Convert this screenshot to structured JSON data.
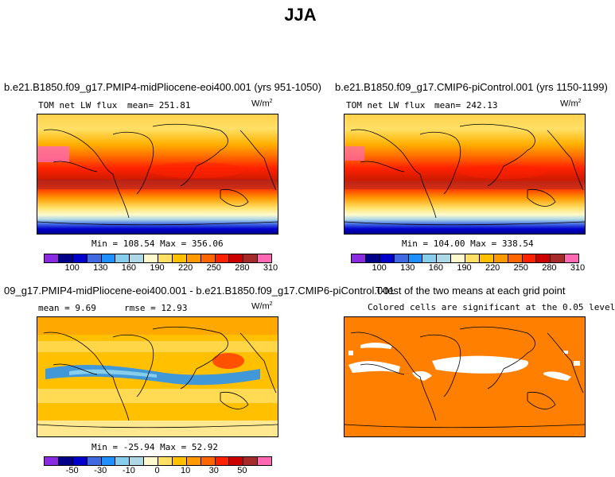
{
  "figure_title": "JJA",
  "units_base": "W/m",
  "units_exp": "2",
  "panels": {
    "p1": {
      "title": "b.e21.B1850.f09_g17.PMIP4-midPliocene-eoi400.001 (yrs 951-1050)",
      "variable": "TOM net LW flux",
      "mean": "mean= 251.81",
      "minmax": "Min = 108.54 Max = 356.06"
    },
    "p2": {
      "title": "b.e21.B1850.f09_g17.CMIP6-piControl.001 (yrs 1150-1199)",
      "variable": "TOM net LW flux",
      "mean": "mean= 242.13",
      "minmax": "Min = 104.00 Max = 338.54"
    },
    "p3": {
      "title": "09_g17.PMIP4-midPliocene-eoi400.001 - b.e21.B1850.f09_g17.CMIP6-piControl.001",
      "mean": "mean =   9.69",
      "rmse": "rmse =   12.93",
      "minmax": "Min = -25.94 Max =  52.92"
    },
    "p4": {
      "title": "T-test of the two means at each grid point",
      "subtitle": "Colored cells are significant at the 0.05 level"
    }
  },
  "legend_abs": {
    "colors": [
      "#8a2be2",
      "#00008b",
      "#0000cd",
      "#4169e1",
      "#1e90ff",
      "#87ceeb",
      "#add8e6",
      "#fffacd",
      "#ffe066",
      "#ffc000",
      "#ff9900",
      "#ff6600",
      "#ff2200",
      "#cc0000",
      "#a52a2a",
      "#ff69b4"
    ],
    "ticks": [
      "100",
      "130",
      "160",
      "190",
      "220",
      "250",
      "280",
      "310"
    ]
  },
  "legend_diff": {
    "colors": [
      "#8a2be2",
      "#00008b",
      "#0000cd",
      "#4169e1",
      "#1e90ff",
      "#87ceeb",
      "#add8e6",
      "#fffacd",
      "#ffe066",
      "#ffc000",
      "#ff9900",
      "#ff6600",
      "#ff2200",
      "#cc0000",
      "#a52a2a",
      "#ff69b4"
    ],
    "ticks": [
      "-50",
      "-30",
      "-10",
      "0",
      "10",
      "30",
      "50"
    ]
  },
  "significance_color": "#ff7f00"
}
